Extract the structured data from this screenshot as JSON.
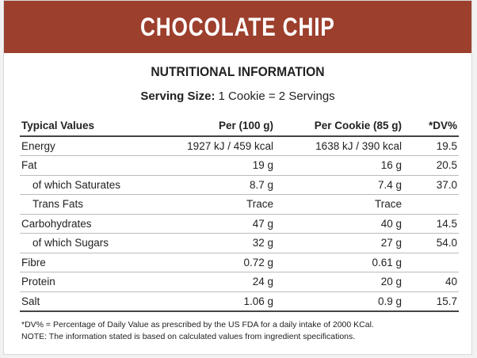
{
  "header": {
    "title": "CHOCOLATE CHIP"
  },
  "subtitle": "NUTRITIONAL INFORMATION",
  "serving": {
    "label": "Serving Size:",
    "value": "1 Cookie = 2 Servings"
  },
  "table": {
    "columns": [
      "Typical Values",
      "Per (100 g)",
      "Per Cookie (85 g)",
      "*DV%"
    ],
    "rows": [
      [
        "Energy",
        "1927 kJ / 459 kcal",
        "1638 kJ / 390 kcal",
        "19.5"
      ],
      [
        "Fat",
        "19 g",
        "16 g",
        "20.5"
      ],
      [
        "of which Saturates",
        "8.7 g",
        "7.4 g",
        "37.0"
      ],
      [
        "Trans Fats",
        "Trace",
        "Trace",
        null
      ],
      [
        "Carbohydrates",
        "47 g",
        "40 g",
        "14.5"
      ],
      [
        "of which Sugars",
        "32 g",
        "27 g",
        "54.0"
      ],
      [
        "Fibre",
        "0.72 g",
        "0.61 g",
        null
      ],
      [
        "Protein",
        "24 g",
        "20 g",
        "40"
      ],
      [
        "Salt",
        "1.06 g",
        "0.9 g",
        "15.7"
      ]
    ]
  },
  "notes": [
    "*DV% = Percentage of Daily Value as prescribed by the US FDA for a daily intake of 2000 KCal.",
    "NOTE: The information stated is based on calculated values from ingredient specifications."
  ]
}
